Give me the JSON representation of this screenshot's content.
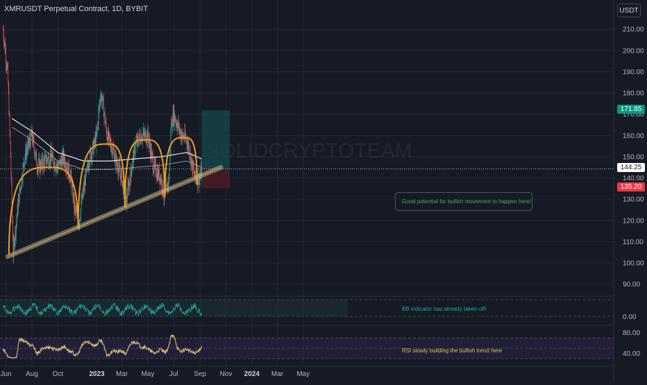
{
  "header": {
    "title": "XMRUSDT Perpetual Contract, 1D, BYBIT",
    "currency": "USDT"
  },
  "watermark": "SOLIDCRYPTOTEAM",
  "colors": {
    "background": "#161a25",
    "grid": "#232733",
    "text": "#b2b5be",
    "bull": "#26a69a",
    "bear": "#ef5350",
    "arc": "#f0a020",
    "trendline": "#c8c8b0",
    "target_zone": "#164a48",
    "stop_zone": "#4a1d26",
    "rsi_line": "#d8c850",
    "rsi_inner": "#7b5cd6",
    "bb_line": "#26a69a",
    "current_tag": "#ffffff",
    "target_tag": "#089981",
    "stop_tag": "#f23645"
  },
  "chart_data": [
    {
      "type": "candlestick",
      "title": "XMRUSDT Perpetual Contract, 1D, BYBIT",
      "x_labels": [
        "Jun",
        "Aug",
        "Oct",
        "2023",
        "Mar",
        "May",
        "Jul",
        "Sep",
        "Nov",
        "2024",
        "Mar",
        "May"
      ],
      "y_ticks": [
        90,
        100,
        110,
        120,
        130,
        140,
        150,
        160,
        170,
        180,
        190,
        200,
        210
      ],
      "ylim": [
        85,
        214
      ],
      "price_series_approx": {
        "dates": [
          "2022-05-25",
          "2022-06-05",
          "2022-06-12",
          "2022-06-18",
          "2022-07-01",
          "2022-07-15",
          "2022-08-01",
          "2022-08-15",
          "2022-09-01",
          "2022-09-15",
          "2022-10-01",
          "2022-10-15",
          "2022-11-01",
          "2022-11-10",
          "2022-11-20",
          "2022-12-01",
          "2022-12-15",
          "2022-12-25",
          "2023-01-01",
          "2023-01-05",
          "2023-01-10",
          "2023-01-15",
          "2023-01-25",
          "2023-02-05",
          "2023-02-20",
          "2023-03-01",
          "2023-03-10",
          "2023-03-20",
          "2023-04-01",
          "2023-04-15",
          "2023-05-01",
          "2023-05-15",
          "2023-06-01",
          "2023-06-10",
          "2023-06-20",
          "2023-06-25",
          "2023-07-01",
          "2023-07-10",
          "2023-07-20",
          "2023-08-01",
          "2023-08-10",
          "2023-08-20",
          "2023-09-01",
          "2023-09-05"
        ],
        "close": [
          210,
          190,
          150,
          105,
          130,
          150,
          160,
          145,
          148,
          150,
          145,
          150,
          140,
          125,
          120,
          135,
          150,
          155,
          160,
          170,
          180,
          175,
          160,
          155,
          145,
          140,
          128,
          140,
          155,
          160,
          160,
          145,
          140,
          130,
          140,
          165,
          170,
          165,
          160,
          158,
          150,
          140,
          140,
          144
        ]
      },
      "moving_average_white_approx": {
        "dates": [
          "2022-06-15",
          "2022-08-01",
          "2022-10-01",
          "2022-12-01",
          "2023-02-01",
          "2023-04-01",
          "2023-06-01",
          "2023-08-01",
          "2023-09-05"
        ],
        "values": [
          168,
          162,
          152,
          148,
          148,
          149,
          150,
          152,
          149
        ]
      },
      "cup_arcs": [
        {
          "start": {
            "date": "2022-06-08",
            "value": 104
          },
          "peak": {
            "date": "2022-09-10",
            "value": 145
          },
          "end": {
            "date": "2022-11-18",
            "value": 116
          }
        },
        {
          "start": {
            "date": "2022-11-18",
            "value": 116
          },
          "peak": {
            "date": "2023-01-25",
            "value": 156
          },
          "end": {
            "date": "2023-03-08",
            "value": 126
          }
        },
        {
          "start": {
            "date": "2023-03-08",
            "value": 126
          },
          "peak": {
            "date": "2023-04-25",
            "value": 158
          },
          "end": {
            "date": "2023-06-10",
            "value": 131
          }
        },
        {
          "start": {
            "date": "2023-06-10",
            "value": 131
          },
          "peak": {
            "date": "2023-07-25",
            "value": 159
          },
          "end": {
            "date": "2023-08-25",
            "value": 137
          }
        }
      ],
      "trendline": {
        "start": {
          "date": "2022-06-05",
          "value": 103
        },
        "end": {
          "date": "2023-10-20",
          "value": 145
        }
      },
      "position": {
        "start": "2023-09-05",
        "end": "2023-11-10",
        "entry": 144.25,
        "target": 171.85,
        "stop": 135.2
      },
      "current_price": "144.25",
      "target_label": "171.85",
      "stop_label": "135.20",
      "annotation": "Good potential for bullish movement to happen here!"
    },
    {
      "type": "line",
      "name_printed": "",
      "y_ticks": [
        "0.00"
      ],
      "annotation": "BB indicator has already taken off!"
    },
    {
      "type": "line",
      "y_ticks": [
        "80.00",
        "40.00"
      ],
      "ylim": [
        30,
        85
      ],
      "annotation": "RSI slowly building the bullish trend here"
    }
  ]
}
